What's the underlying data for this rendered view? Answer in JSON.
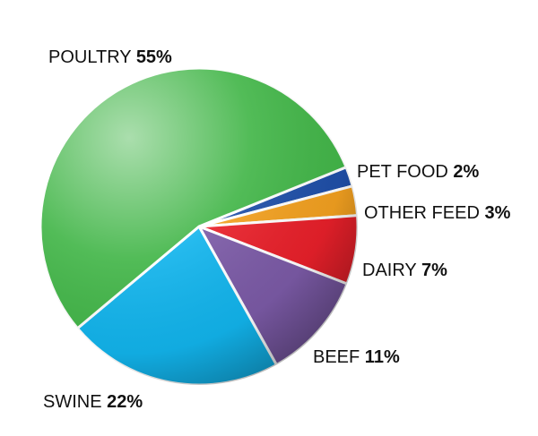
{
  "chart_data": {
    "type": "pie",
    "title": "",
    "start_angle_deg": -22,
    "direction": "clockwise",
    "slices": [
      {
        "name": "PET FOOD",
        "value": 2,
        "value_label": "2%",
        "color": "#1f4fa8"
      },
      {
        "name": "OTHER FEED",
        "value": 3,
        "value_label": "3%",
        "color": "#f2a020"
      },
      {
        "name": "DAIRY",
        "value": 7,
        "value_label": "7%",
        "color": "#e8202a"
      },
      {
        "name": "BEEF",
        "value": 11,
        "value_label": "11%",
        "color": "#7b5aa6"
      },
      {
        "name": "SWINE",
        "value": 22,
        "value_label": "22%",
        "color": "#12b4ec"
      },
      {
        "name": "POULTRY",
        "value": 55,
        "value_label": "55%",
        "color": "#43b649"
      }
    ]
  }
}
